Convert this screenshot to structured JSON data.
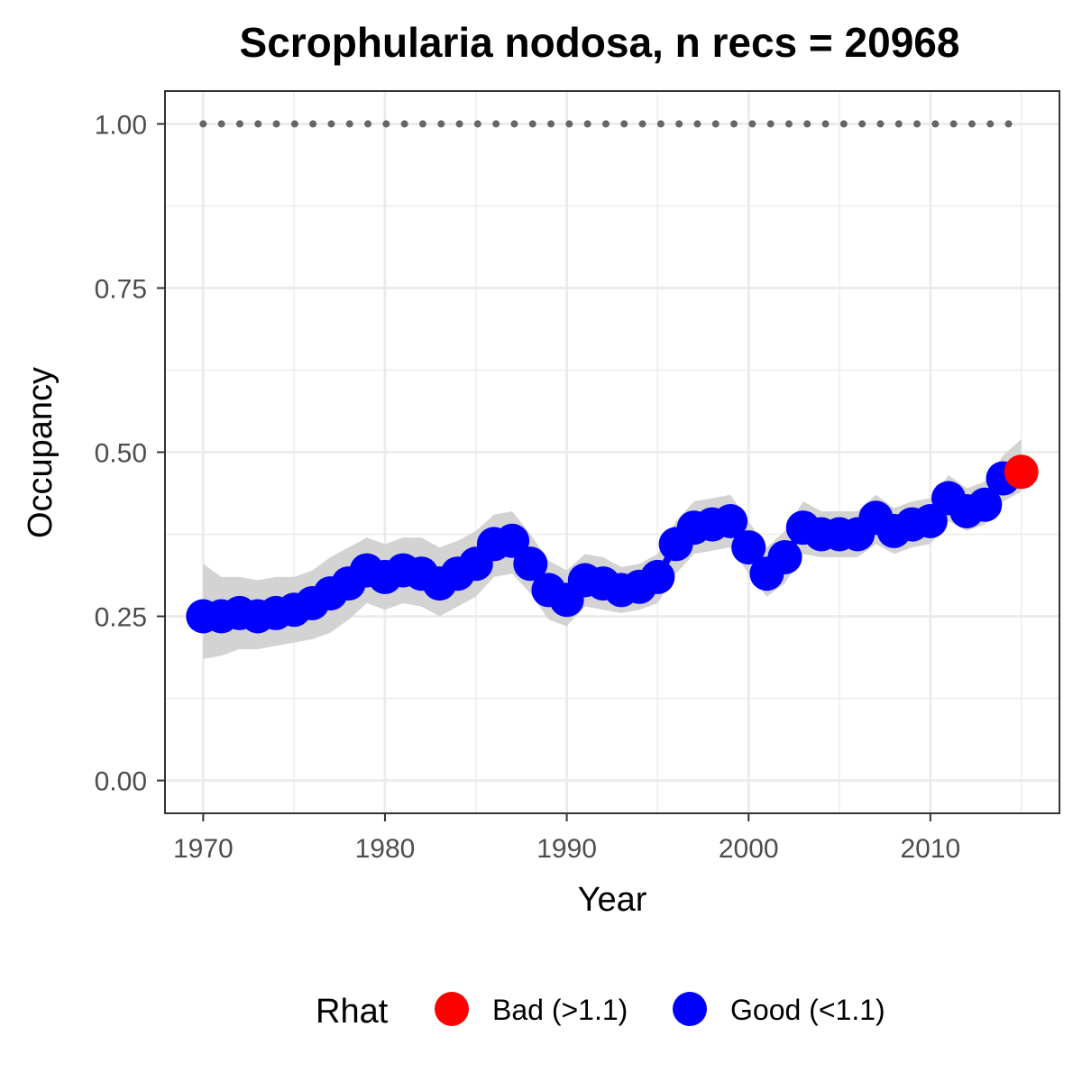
{
  "chart_data": {
    "type": "line",
    "title": "Scrophularia nodosa, n recs = 20968",
    "xlabel": "Year",
    "ylabel": "Occupancy",
    "xlim": [
      1967.9,
      2017.1
    ],
    "ylim": [
      -0.05,
      1.05
    ],
    "x_ticks": [
      1970,
      1980,
      1990,
      2000,
      2010
    ],
    "x_tick_labels": [
      "1970",
      "1980",
      "1990",
      "2000",
      "2010"
    ],
    "y_ticks": [
      0,
      0.25,
      0.5,
      0.75,
      1
    ],
    "y_tick_labels": [
      "0.00",
      "0.25",
      "0.50",
      "0.75",
      "1.00"
    ],
    "grid": true,
    "x": [
      1970,
      1971,
      1972,
      1973,
      1974,
      1975,
      1976,
      1977,
      1978,
      1979,
      1980,
      1981,
      1982,
      1983,
      1984,
      1985,
      1986,
      1987,
      1988,
      1989,
      1990,
      1991,
      1992,
      1993,
      1994,
      1995,
      1996,
      1997,
      1998,
      1999,
      2000,
      2001,
      2002,
      2003,
      2004,
      2005,
      2006,
      2007,
      2008,
      2009,
      2010,
      2011,
      2012,
      2013,
      2014,
      2015
    ],
    "occupancy": [
      0.25,
      0.25,
      0.255,
      0.25,
      0.255,
      0.26,
      0.27,
      0.285,
      0.3,
      0.32,
      0.31,
      0.32,
      0.315,
      0.3,
      0.315,
      0.33,
      0.36,
      0.365,
      0.33,
      0.29,
      0.275,
      0.305,
      0.3,
      0.29,
      0.295,
      0.31,
      0.36,
      0.385,
      0.39,
      0.395,
      0.355,
      0.315,
      0.34,
      0.385,
      0.375,
      0.375,
      0.375,
      0.4,
      0.38,
      0.39,
      0.395,
      0.43,
      0.41,
      0.42,
      0.46,
      0.47
    ],
    "lower": [
      0.185,
      0.19,
      0.2,
      0.2,
      0.205,
      0.21,
      0.215,
      0.225,
      0.245,
      0.27,
      0.26,
      0.27,
      0.265,
      0.25,
      0.265,
      0.28,
      0.31,
      0.315,
      0.285,
      0.245,
      0.235,
      0.265,
      0.26,
      0.255,
      0.26,
      0.27,
      0.315,
      0.345,
      0.35,
      0.355,
      0.315,
      0.28,
      0.3,
      0.345,
      0.34,
      0.34,
      0.34,
      0.36,
      0.345,
      0.355,
      0.36,
      0.395,
      0.38,
      0.39,
      0.425,
      0.44
    ],
    "upper": [
      0.33,
      0.31,
      0.31,
      0.305,
      0.31,
      0.31,
      0.32,
      0.34,
      0.355,
      0.37,
      0.36,
      0.37,
      0.37,
      0.355,
      0.365,
      0.38,
      0.405,
      0.41,
      0.375,
      0.335,
      0.32,
      0.345,
      0.34,
      0.325,
      0.33,
      0.345,
      0.395,
      0.425,
      0.43,
      0.435,
      0.395,
      0.355,
      0.38,
      0.425,
      0.41,
      0.41,
      0.41,
      0.435,
      0.415,
      0.425,
      0.43,
      0.465,
      0.445,
      0.455,
      0.495,
      0.52
    ],
    "rhat_status": [
      "good",
      "good",
      "good",
      "good",
      "good",
      "good",
      "good",
      "good",
      "good",
      "good",
      "good",
      "good",
      "good",
      "good",
      "good",
      "good",
      "good",
      "good",
      "good",
      "good",
      "good",
      "good",
      "good",
      "good",
      "good",
      "good",
      "good",
      "good",
      "good",
      "good",
      "good",
      "good",
      "good",
      "good",
      "good",
      "good",
      "good",
      "good",
      "good",
      "good",
      "good",
      "good",
      "good",
      "good",
      "good",
      "bad"
    ],
    "reference_line": {
      "y": 1.0,
      "style": "dotted",
      "color": "#666666"
    },
    "colors": {
      "good": "#0000ff",
      "bad": "#ff0000",
      "ribbon": "#d3d3d3",
      "panel_border": "#333333",
      "grid": "#ebebeb"
    },
    "legend": {
      "title": "Rhat",
      "position": "bottom",
      "entries": [
        {
          "key": "bad",
          "label": "Bad (>1.1)",
          "color": "#ff0000"
        },
        {
          "key": "good",
          "label": "Good (<1.1)",
          "color": "#0000ff"
        }
      ]
    }
  }
}
